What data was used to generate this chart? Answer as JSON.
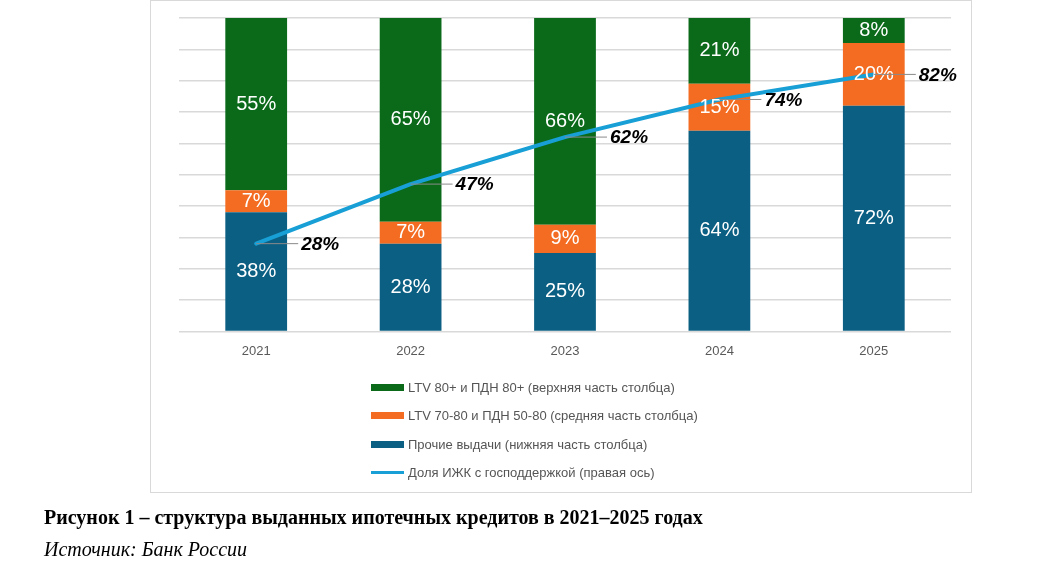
{
  "chart_data": {
    "type": "bar",
    "stacked": true,
    "title": "Рисунок 1 – структура выданных ипотечных кредитов в 2021–2025 годах",
    "annotations": [
      "Источник: Банк России"
    ],
    "categories": [
      "2021",
      "2022",
      "2023",
      "2024",
      "2025"
    ],
    "series": [
      {
        "name": "Прочие выдачи (нижняя часть столбца)",
        "color": "#0b5f82",
        "values": [
          38,
          28,
          25,
          64,
          72
        ],
        "value_labels": [
          "38%",
          "28%",
          "25%",
          "64%",
          "72%"
        ]
      },
      {
        "name": "LTV 70-80 и ПДН 50-80 (средняя часть столбца)",
        "color": "#f36c21",
        "values": [
          7,
          7,
          9,
          15,
          20
        ],
        "value_labels": [
          "7%",
          "7%",
          "9%",
          "15%",
          "20%"
        ]
      },
      {
        "name": "LTV 80+ и ПДН 80+ (верхняя часть столбца)",
        "color": "#0a6a1a",
        "values": [
          55,
          65,
          66,
          21,
          8
        ],
        "value_labels": [
          "55%",
          "65%",
          "66%",
          "21%",
          "8%"
        ]
      },
      {
        "name": "Доля ИЖК с господдержкой (правая ось)",
        "type": "line",
        "color": "#189fd6",
        "values": [
          28,
          47,
          62,
          74,
          82
        ],
        "value_labels": [
          "28%",
          "47%",
          "62%",
          "74%",
          "82%"
        ]
      }
    ],
    "ylim": [
      0,
      100
    ],
    "yticks": [
      {
        "value": 0,
        "label": null
      },
      {
        "value": 10,
        "label": null
      },
      {
        "value": 20,
        "label": null
      },
      {
        "value": 30,
        "label": null
      },
      {
        "value": 40,
        "label": null
      },
      {
        "value": 50,
        "label": null
      },
      {
        "value": 60,
        "label": null
      },
      {
        "value": 70,
        "label": null
      },
      {
        "value": 80,
        "label": null
      },
      {
        "value": 90,
        "label": null
      },
      {
        "value": 100,
        "label": null
      }
    ],
    "tick_labels": "x",
    "grid": "y",
    "legend": "bottom"
  }
}
